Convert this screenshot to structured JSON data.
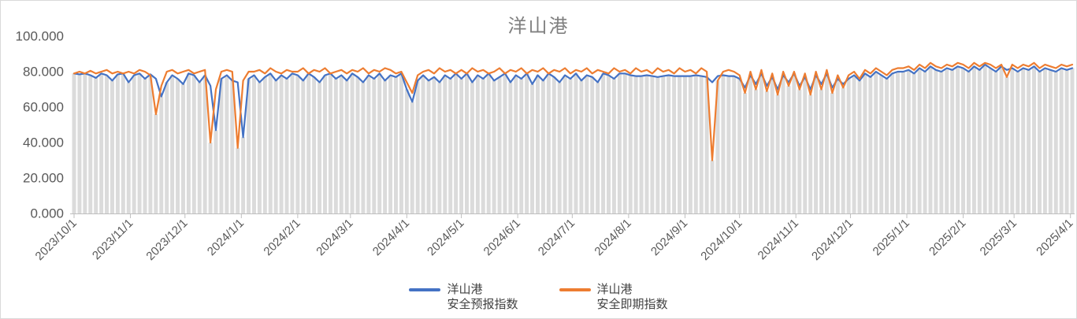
{
  "window": {
    "background_color": "#FFFFFF",
    "border_color": "#D9D9D9"
  },
  "chart_data": {
    "type": "line",
    "title": "洋山港",
    "title_color": "#808080",
    "label_color": "#595959",
    "axis_color": "#BFBFBF",
    "grid": false,
    "legend_position": "bottom-center",
    "ylim": [
      0,
      100
    ],
    "y_ticks": [
      {
        "label": "100.000",
        "value": 100
      },
      {
        "label": "80.000",
        "value": 80
      },
      {
        "label": "60.000",
        "value": 60
      },
      {
        "label": "40.000",
        "value": 40
      },
      {
        "label": "20.000",
        "value": 20
      },
      {
        "label": "0.000",
        "value": 0
      }
    ],
    "x_start": "2023/10/1",
    "x_end": "2025/4/1",
    "x_step_days": 3,
    "x_tick_labels": [
      "2023/10/1",
      "2023/11/1",
      "2023/12/1",
      "2024/1/1",
      "2024/2/1",
      "2024/3/1",
      "2024/4/1",
      "2024/5/1",
      "2024/6/1",
      "2024/7/1",
      "2024/8/1",
      "2024/9/1",
      "2024/10/1",
      "2024/11/1",
      "2024/12/1",
      "2025/1/1",
      "2025/2/1",
      "2025/3/1",
      "2025/4/1"
    ],
    "background_bars": {
      "color": "#DBDBDB"
    },
    "series": [
      {
        "name": "洋山港 安全预报指数",
        "legend_lines": [
          "洋山港",
          "安全预报指数"
        ],
        "color": "#4472C4",
        "values": [
          79,
          78.5,
          79,
          78,
          76.5,
          79,
          78,
          75,
          78.5,
          79,
          74,
          78,
          79,
          76,
          78.5,
          76,
          66,
          74,
          78,
          76,
          73,
          79,
          78,
          74,
          78,
          72,
          47,
          76,
          78,
          75,
          74,
          43,
          76,
          78,
          74,
          77,
          79,
          75,
          78,
          76,
          79,
          78,
          75,
          79,
          77,
          74,
          78,
          79,
          76,
          78,
          75,
          79,
          77,
          74,
          78,
          76,
          79,
          75,
          78,
          77,
          79,
          70,
          63,
          75,
          78,
          75,
          77,
          74,
          78,
          76,
          79,
          76,
          79,
          74,
          78,
          76,
          79,
          75,
          77,
          79,
          74,
          78,
          76,
          79,
          73,
          78,
          75,
          79,
          77,
          74,
          78,
          76,
          79,
          75,
          78,
          77,
          74,
          79,
          78,
          76,
          79,
          79,
          78,
          77.5,
          77.5,
          78,
          77.5,
          77,
          77.5,
          78,
          77.5,
          77.5,
          77.5,
          77.5,
          78,
          77.5,
          77,
          74,
          77.5,
          78,
          77.5,
          77.5,
          76,
          71,
          78,
          73,
          79,
          72,
          77,
          70,
          78,
          74,
          79,
          72,
          77,
          70,
          78,
          73,
          79,
          71,
          76,
          73,
          76,
          78,
          75,
          79,
          77,
          80,
          78,
          76,
          79,
          80,
          80,
          81,
          79,
          82,
          80,
          83,
          81,
          80,
          82,
          81,
          83,
          82,
          80,
          83,
          81,
          84,
          82,
          80,
          83,
          81,
          82,
          80,
          82,
          81,
          83,
          80,
          82,
          81,
          80,
          82,
          81,
          82
        ]
      },
      {
        "name": "洋山港 安全即期指数",
        "legend_lines": [
          "洋山港",
          "安全即期指数"
        ],
        "color": "#ED7D31",
        "values": [
          79,
          80,
          79,
          80.5,
          79,
          80,
          81,
          79,
          80,
          79,
          80,
          79,
          81,
          80,
          78,
          56,
          72,
          80,
          81,
          79,
          80,
          81,
          79,
          80,
          81,
          40,
          70,
          80,
          81,
          80,
          37,
          75,
          80,
          80,
          81,
          79,
          82,
          80,
          79,
          81,
          80,
          80,
          82,
          79,
          81,
          80,
          82,
          79,
          80,
          81,
          79,
          81,
          80,
          82,
          79,
          81,
          80,
          82,
          81,
          79,
          80,
          74,
          68,
          78,
          80,
          81,
          79,
          82,
          80,
          81,
          79,
          81,
          79,
          82,
          80,
          81,
          79,
          80,
          82,
          79,
          81,
          80,
          82,
          79,
          81,
          80,
          82,
          79,
          81,
          80,
          82,
          79,
          81,
          80,
          82,
          79,
          81,
          80,
          79,
          82,
          80,
          81,
          79,
          82,
          80,
          81,
          79,
          82,
          80,
          81,
          79,
          82,
          80,
          81,
          79,
          82,
          80,
          30,
          75,
          80,
          81,
          80,
          78,
          68,
          80,
          70,
          81,
          69,
          79,
          67,
          80,
          72,
          80,
          70,
          79,
          67,
          80,
          70,
          81,
          68,
          78,
          71,
          78,
          80,
          76,
          81,
          79,
          82,
          80,
          78,
          81,
          82,
          82,
          83,
          81,
          84,
          82,
          85,
          83,
          82,
          84,
          83,
          85,
          84,
          82,
          85,
          83,
          85,
          84,
          82,
          84,
          77,
          84,
          82,
          84,
          83,
          85,
          82,
          84,
          83,
          82,
          84,
          83,
          84
        ]
      }
    ]
  }
}
